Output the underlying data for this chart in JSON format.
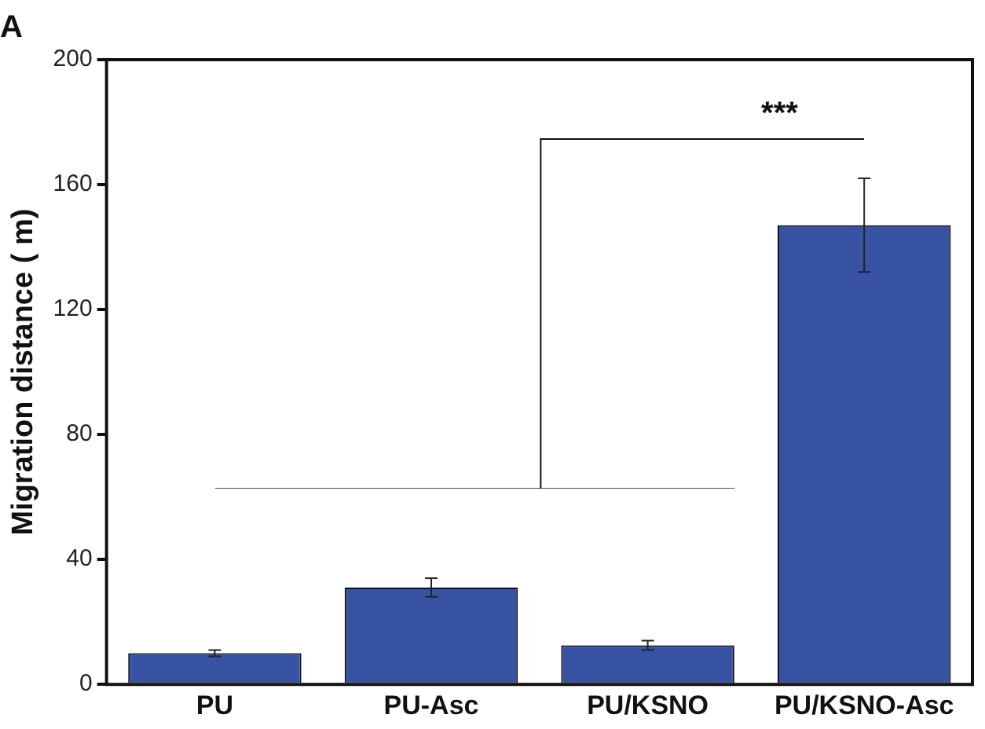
{
  "chart_data": {
    "type": "bar",
    "title": "A",
    "ylabel": "Migration distance ( m)",
    "categories": [
      "PU",
      "PU-Asc",
      "PU/KSNO",
      "PU/KSNO-Asc"
    ],
    "values": [
      10,
      31,
      12.5,
      147
    ],
    "errors": [
      1,
      3,
      1.5,
      15
    ],
    "color": "#3953a4",
    "ylim": [
      0,
      200
    ],
    "yticks": [
      0,
      40,
      80,
      120,
      160,
      200
    ],
    "grid": false,
    "legend": false,
    "annotations": [
      "***"
    ]
  }
}
